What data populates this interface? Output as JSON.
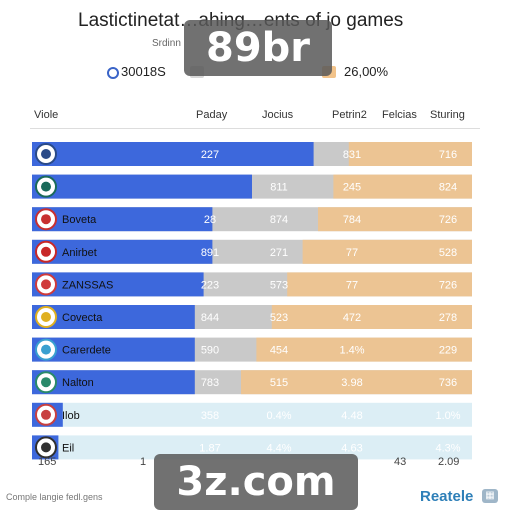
{
  "title": "Lastictinetat…ahing…ents of jo games",
  "subtitle": "Srdinn",
  "legend": [
    {
      "label": "30018S",
      "color": "#3a64c8"
    },
    {
      "label": "26,00%",
      "color": "#f0c088"
    }
  ],
  "watermarks": {
    "top": "89br",
    "bottom": "3z.com"
  },
  "footnote": "Comple langie fedl.gens",
  "brand": "Reatele",
  "colors": {
    "blue": "#3d68dc",
    "orange": "#f2c38a",
    "gray": "#c9c9c9",
    "lightblue": "#dceef5"
  },
  "chart_data": {
    "type": "table",
    "columns": [
      "Viole",
      "Paday",
      "Jocius",
      "Petrin2",
      "Felcias",
      "Sturing"
    ],
    "axis_ticks": [
      "165",
      "1",
      "",
      "",
      "43",
      "2.09"
    ],
    "rows": [
      {
        "name": "",
        "icon": "game-icon",
        "bar": 0.64,
        "values": [
          "227",
          "",
          "831",
          "",
          "716"
        ]
      },
      {
        "name": "",
        "icon": "game-icon",
        "bar": 0.5,
        "values": [
          "",
          "811",
          "245",
          "",
          "824"
        ]
      },
      {
        "name": "Boveta",
        "icon": "game-icon",
        "bar": 0.41,
        "values": [
          "28",
          "874",
          "784",
          "",
          "726"
        ]
      },
      {
        "name": "Anirbet",
        "icon": "game-icon",
        "bar": 0.41,
        "values": [
          "891",
          "271",
          "77",
          "",
          "528"
        ]
      },
      {
        "name": "ZANSSAS",
        "icon": "game-icon",
        "bar": 0.39,
        "values": [
          "223",
          "573",
          "77",
          "",
          "726"
        ]
      },
      {
        "name": "Covecta",
        "icon": "game-icon",
        "bar": 0.37,
        "values": [
          "844",
          "523",
          "472",
          "",
          "278"
        ]
      },
      {
        "name": "Carerdete",
        "icon": "game-icon",
        "bar": 0.37,
        "values": [
          "590",
          "454",
          "1.4%",
          "",
          "229"
        ]
      },
      {
        "name": "Nalton",
        "icon": "game-icon",
        "bar": 0.37,
        "values": [
          "783",
          "515",
          "3.98",
          "",
          "736"
        ]
      },
      {
        "name": "Ilob",
        "icon": "game-icon",
        "bar": 0.07,
        "values": [
          "358",
          "0.4%",
          "4.48",
          "",
          "1.0%"
        ]
      },
      {
        "name": "Eil",
        "icon": "game-icon",
        "bar": 0.06,
        "values": [
          "1.87",
          "4.4%",
          "4.63",
          "",
          "4.3%"
        ]
      }
    ]
  }
}
